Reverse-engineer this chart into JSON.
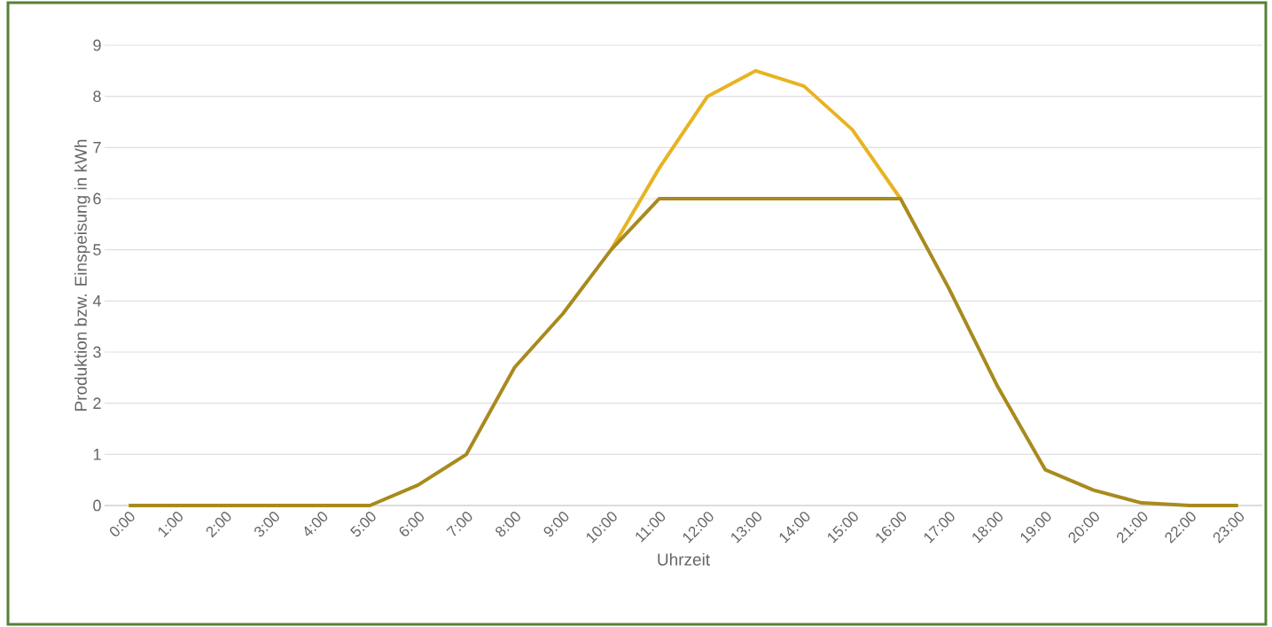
{
  "chart_data": {
    "type": "line",
    "xlabel": "Uhrzeit",
    "ylabel": "Produktion bzw. Einspeisung in kWh",
    "categories": [
      "0:00",
      "1:00",
      "2:00",
      "3:00",
      "4:00",
      "5:00",
      "6:00",
      "7:00",
      "8:00",
      "9:00",
      "10:00",
      "11:00",
      "12:00",
      "13:00",
      "14:00",
      "15:00",
      "16:00",
      "17:00",
      "18:00",
      "19:00",
      "20:00",
      "21:00",
      "22:00",
      "23:00"
    ],
    "series": [
      {
        "color": "#e8b323",
        "values": [
          null,
          null,
          null,
          null,
          null,
          null,
          null,
          null,
          null,
          null,
          5.0,
          6.6,
          8.0,
          8.5,
          8.2,
          7.35,
          6.0,
          null,
          null,
          null,
          null,
          null,
          null,
          null
        ]
      },
      {
        "color": "#a88a1e",
        "values": [
          0,
          0,
          0,
          0,
          0,
          0,
          0.4,
          1.0,
          2.7,
          3.75,
          5.0,
          6.0,
          6.0,
          6.0,
          6.0,
          6.0,
          6.0,
          4.25,
          2.35,
          0.7,
          0.3,
          0.05,
          0,
          0
        ]
      }
    ],
    "ylim": [
      0,
      9
    ],
    "yticks": [
      0,
      1,
      2,
      3,
      4,
      5,
      6,
      7,
      8,
      9
    ],
    "grid": "y",
    "legend": false,
    "marker": "none",
    "line_style": "solid"
  }
}
